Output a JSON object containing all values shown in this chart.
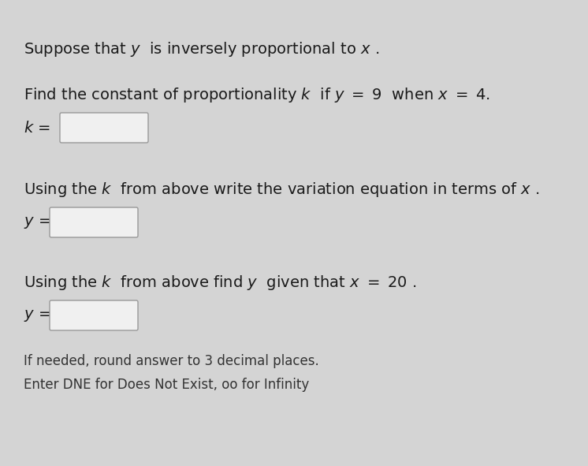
{
  "bg_color": "#d4d4d4",
  "text_color": "#1a1a1a",
  "footer_color": "#333333",
  "font_size_main": 14,
  "font_size_footer": 12,
  "box_facecolor": "#f0f0f0",
  "box_edgecolor": "#999999"
}
